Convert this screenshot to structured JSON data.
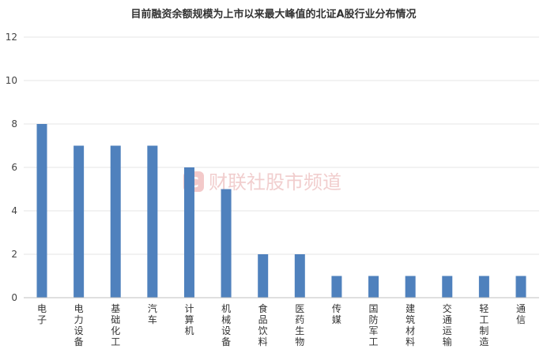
{
  "chart_data": {
    "type": "bar",
    "title": "目前融资余额规模为上市以来最大峰值的北证A股行业分布情况",
    "xlabel": "",
    "ylabel": "",
    "categories": [
      "电子",
      "电力设备",
      "基础化工",
      "汽车",
      "计算机",
      "机械设备",
      "食品饮料",
      "医药生物",
      "传媒",
      "国防军工",
      "建筑材料",
      "交通运输",
      "轻工制造",
      "通信"
    ],
    "values": [
      8,
      7,
      7,
      7,
      6,
      5,
      2,
      2,
      1,
      1,
      1,
      1,
      1,
      1
    ],
    "ylim": [
      0,
      12
    ],
    "yticks": [
      0,
      2,
      4,
      6,
      8,
      10,
      12
    ],
    "grid": true,
    "bar_color": "#4f81bd",
    "grid_color": "#e6e6e6",
    "axis_color": "#bfbfbf"
  },
  "watermark": {
    "logo_letter": "C",
    "text": "财联社股市频道",
    "color": "#f0c9c9"
  }
}
